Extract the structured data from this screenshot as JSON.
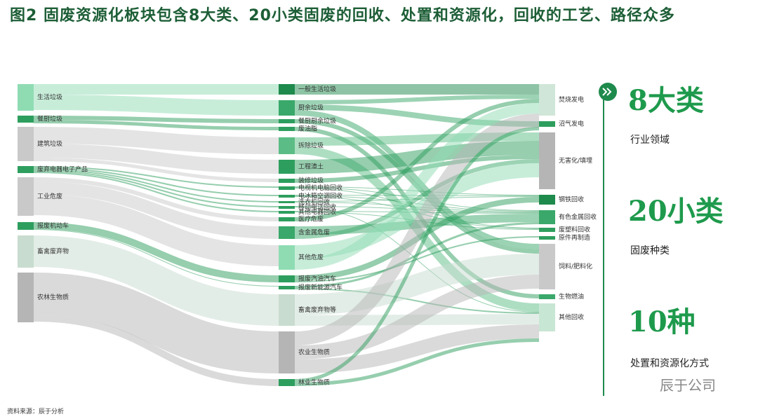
{
  "header": {
    "title": "图2 固废资源化板块包含8大类、20小类固废的回收、处置和资源化，回收的工艺、路径众多"
  },
  "sankey": {
    "sources": [
      "生活垃圾",
      "餐厨垃圾",
      "建筑垃圾",
      "废弃电器电子产品",
      "工业危废",
      "报废机动车",
      "畜禽废弃物",
      "农林生物质"
    ],
    "middle": [
      "一般生活垃圾",
      "厨余垃圾",
      "餐厨厨余垃圾",
      "废油脂",
      "拆除垃圾",
      "工程渣土",
      "装修垃圾",
      "电视机电脑回收",
      "电冰箱空调回收",
      "洗衣机回收",
      "移动电话回收",
      "其他电器回收",
      "医疗危废",
      "含金属危废",
      "其他危废",
      "报废汽油汽车",
      "报废新能源汽车",
      "畜禽废弃物等",
      "农业生物质",
      "林业生物质"
    ],
    "targets": [
      "焚烧发电",
      "沼气发电",
      "无害化/填埋",
      "钢铁回收",
      "有色金属回收",
      "废塑料回收",
      "原件再制造",
      "饲料/肥料化",
      "生物燃油",
      "其他回收"
    ]
  },
  "stats": [
    {
      "big": "8大类",
      "label": "行业领域"
    },
    {
      "big": "20小类",
      "label": "固废种类"
    },
    {
      "big": "10种",
      "label": "处置和资源化方式"
    }
  ],
  "footer": {
    "source": "资料来源：辰于分析",
    "watermark": "辰于公司"
  }
}
